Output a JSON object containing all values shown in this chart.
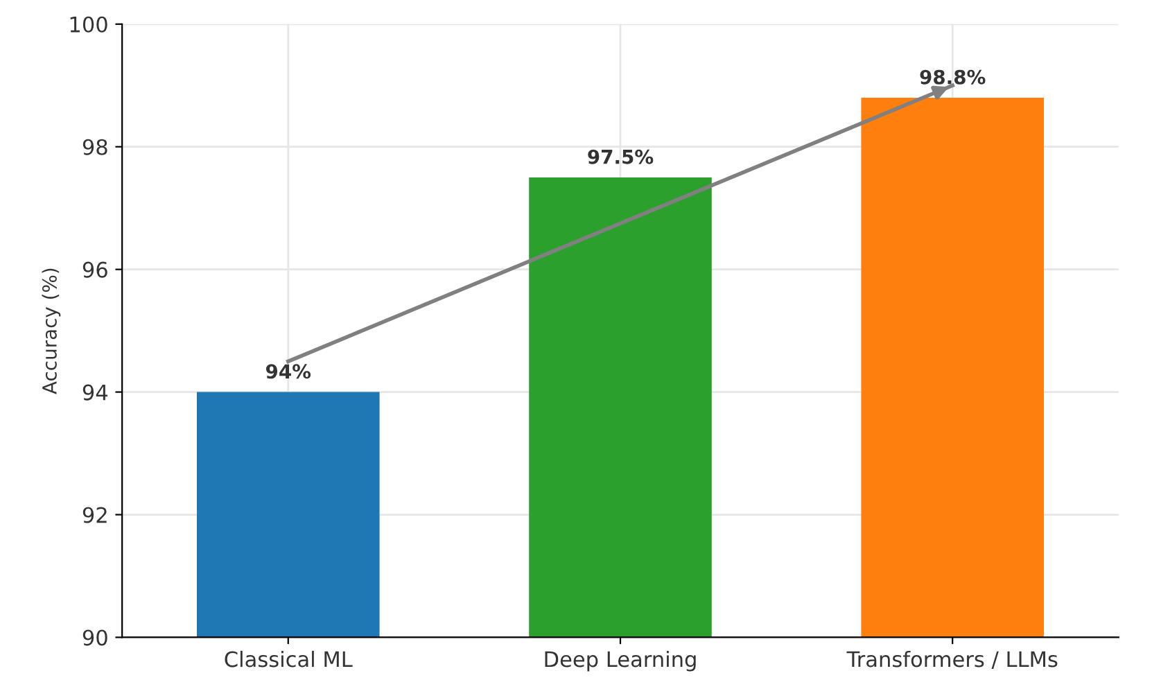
{
  "chart_data": {
    "type": "bar",
    "ylabel": "Accuracy (%)",
    "categories": [
      "Classical ML",
      "Deep Learning",
      "Transformers / LLMs"
    ],
    "series": [
      {
        "colors": [
          "#1f77b4",
          "#2ca02c",
          "#ff7f0e"
        ],
        "values": [
          94,
          97.5,
          98.8
        ],
        "value_labels": [
          "94%",
          "97.5%",
          "98.8%"
        ]
      },
      {
        "type": "line",
        "color": "#808080",
        "x": [
          "Classical ML",
          "Transformers / LLMs"
        ],
        "values": [
          94.5,
          99.0
        ]
      }
    ],
    "ylim": [
      90,
      100
    ],
    "yticks": [
      90,
      92,
      94,
      96,
      98,
      100
    ],
    "grid": true,
    "marker": "none",
    "line_style": "solid"
  }
}
